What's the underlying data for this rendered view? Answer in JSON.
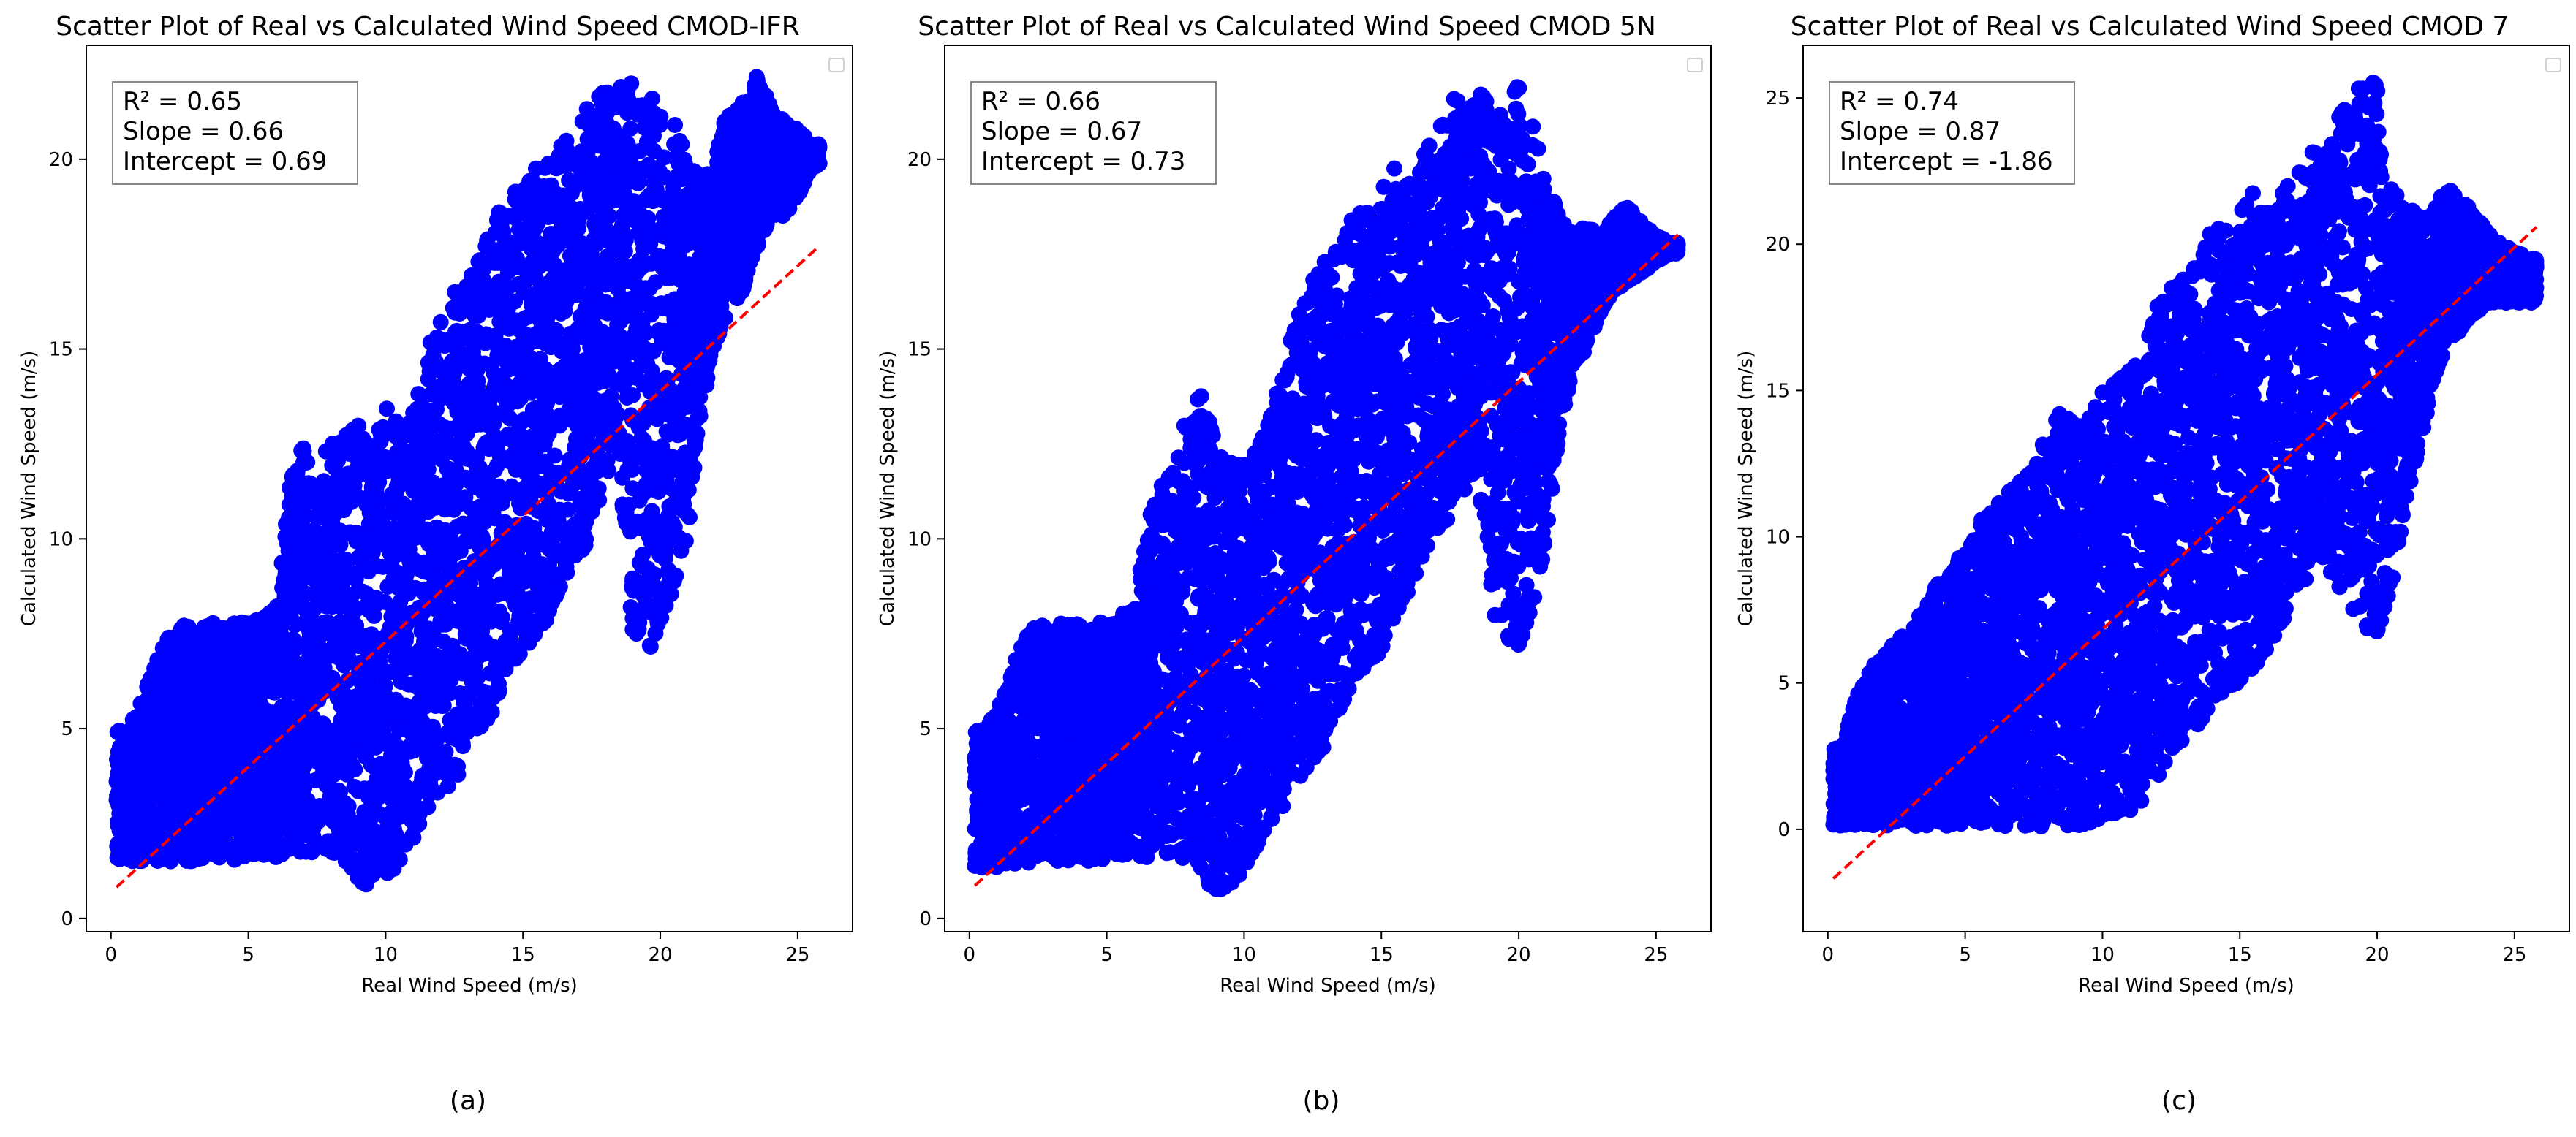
{
  "chart_data": [
    {
      "type": "scatter",
      "panel_label": "(a)",
      "title": "Scatter Plot of Real vs Calculated Wind Speed CMOD-IFR",
      "xlabel": "Real Wind Speed (m/s)",
      "ylabel": "Calculated Wind Speed (m/s)",
      "xlim": [
        -0.9,
        27.0
      ],
      "ylim": [
        -0.35,
        23.0
      ],
      "xticks": [
        0,
        5,
        10,
        15,
        20,
        25
      ],
      "yticks": [
        0,
        5,
        10,
        15,
        20
      ],
      "grid": false,
      "legend": "top-right (empty)",
      "stats": [
        "R² = 0.65",
        "Slope = 0.66",
        "Intercept = 0.69"
      ],
      "regression": {
        "slope": 0.66,
        "intercept": 0.69,
        "x_range": [
          0.2,
          25.8
        ],
        "style": "dashed",
        "color": "#ff0000"
      },
      "point_color": "#0000ff",
      "series": [
        {
          "x": [
            0.5,
            1.0,
            1.5,
            2.0,
            2.5,
            3.0,
            3.5,
            4.0,
            4.5,
            5.0,
            5.5,
            6.0,
            6.5,
            7.0,
            7.5,
            8.0,
            8.5,
            9.0,
            9.5,
            10.0,
            10.5,
            11.0,
            11.5,
            12.0,
            12.5,
            13.0,
            13.5,
            14.0,
            14.5,
            15.0,
            15.5,
            16.0,
            16.5,
            17.0,
            17.5,
            18.0,
            18.5,
            19.0,
            19.5,
            20.0,
            20.5,
            21.0,
            21.5,
            22.0,
            22.5,
            23.0,
            23.5,
            24.0,
            24.5,
            25.0,
            25.5
          ],
          "y_lower": [
            1.5,
            1.5,
            1.5,
            1.5,
            1.5,
            1.5,
            1.5,
            1.5,
            1.5,
            1.6,
            1.6,
            1.6,
            1.7,
            1.7,
            1.7,
            1.7,
            1.5,
            1.0,
            0.8,
            0.9,
            1.5,
            2.0,
            2.5,
            3.0,
            3.5,
            4.5,
            5.0,
            5.5,
            6.5,
            7.0,
            7.5,
            8.0,
            9.0,
            9.5,
            10.0,
            11.5,
            12.0,
            7.5,
            7.0,
            7.5,
            8.5,
            10.0,
            13.5,
            15.0,
            16.0,
            16.5,
            17.5,
            18.5,
            18.5,
            19.0,
            19.8
          ],
          "y_upper": [
            5.0,
            5.5,
            6.5,
            7.5,
            7.8,
            7.8,
            7.8,
            7.8,
            7.8,
            7.8,
            8.0,
            8.2,
            11.5,
            12.5,
            11.0,
            13.0,
            13.0,
            13.0,
            12.5,
            14.0,
            12.8,
            13.5,
            15.0,
            15.8,
            16.5,
            16.8,
            17.5,
            18.5,
            19.0,
            19.5,
            19.8,
            20.0,
            20.5,
            21.0,
            21.5,
            22.0,
            22.0,
            22.0,
            21.8,
            21.5,
            21.0,
            20.0,
            19.5,
            20.0,
            21.5,
            21.5,
            22.2,
            21.5,
            21.0,
            20.8,
            20.4
          ]
        }
      ]
    },
    {
      "type": "scatter",
      "panel_label": "(b)",
      "title": "Scatter Plot of Real vs Calculated Wind Speed CMOD 5N",
      "xlabel": "Real Wind Speed (m/s)",
      "ylabel": "Calculated Wind Speed (m/s)",
      "xlim": [
        -0.9,
        27.0
      ],
      "ylim": [
        -0.35,
        23.0
      ],
      "xticks": [
        0,
        5,
        10,
        15,
        20,
        25
      ],
      "yticks": [
        0,
        5,
        10,
        15,
        20
      ],
      "grid": false,
      "legend": "top-right (empty)",
      "stats": [
        "R² = 0.66",
        "Slope = 0.67",
        "Intercept = 0.73"
      ],
      "regression": {
        "slope": 0.67,
        "intercept": 0.73,
        "x_range": [
          0.2,
          25.8
        ],
        "style": "dashed",
        "color": "#ff0000"
      },
      "point_color": "#0000ff",
      "series": [
        {
          "x": [
            0.5,
            1.0,
            1.5,
            2.0,
            2.5,
            3.0,
            3.5,
            4.0,
            4.5,
            5.0,
            5.5,
            6.0,
            6.5,
            7.0,
            7.5,
            8.0,
            8.5,
            9.0,
            9.5,
            10.0,
            10.5,
            11.0,
            11.5,
            12.0,
            12.5,
            13.0,
            13.5,
            14.0,
            14.5,
            15.0,
            15.5,
            16.0,
            16.5,
            17.0,
            17.5,
            18.0,
            18.5,
            19.0,
            19.5,
            20.0,
            20.5,
            21.0,
            21.5,
            22.0,
            22.5,
            23.0,
            23.5,
            24.0,
            24.5,
            25.0,
            25.5
          ],
          "y_lower": [
            1.3,
            1.3,
            1.4,
            1.4,
            1.5,
            1.5,
            1.5,
            1.5,
            1.5,
            1.5,
            1.6,
            1.6,
            1.6,
            1.7,
            1.7,
            1.5,
            1.0,
            0.7,
            0.9,
            1.2,
            1.8,
            2.5,
            3.0,
            3.5,
            4.0,
            4.5,
            5.5,
            6.0,
            6.5,
            7.0,
            8.0,
            8.5,
            9.5,
            10.0,
            10.5,
            11.0,
            12.0,
            8.0,
            7.5,
            7.0,
            8.0,
            10.0,
            13.0,
            14.5,
            15.0,
            16.0,
            16.5,
            16.8,
            17.0,
            17.3,
            17.5
          ],
          "y_upper": [
            5.0,
            5.5,
            6.5,
            7.5,
            7.8,
            7.8,
            7.8,
            7.8,
            7.8,
            7.8,
            8.0,
            8.2,
            10.5,
            11.5,
            12.0,
            13.5,
            13.8,
            12.5,
            12.0,
            12.0,
            12.5,
            13.5,
            15.0,
            16.0,
            16.8,
            17.5,
            18.0,
            18.5,
            19.0,
            19.5,
            19.8,
            20.0,
            20.3,
            20.8,
            21.5,
            21.8,
            22.0,
            21.5,
            21.0,
            22.3,
            21.0,
            19.5,
            18.5,
            18.0,
            18.3,
            18.0,
            18.5,
            18.8,
            18.3,
            18.0,
            17.8
          ]
        }
      ]
    },
    {
      "type": "scatter",
      "panel_label": "(c)",
      "title": "Scatter Plot of Real vs Calculated Wind Speed CMOD 7",
      "xlabel": "Real Wind Speed (m/s)",
      "ylabel": "Calculated Wind Speed (m/s)",
      "xlim": [
        -0.9,
        27.0
      ],
      "ylim": [
        -3.5,
        26.8
      ],
      "xticks": [
        0,
        5,
        10,
        15,
        20,
        25
      ],
      "yticks": [
        0,
        5,
        10,
        15,
        20,
        25
      ],
      "grid": false,
      "legend": "top-right (empty)",
      "stats": [
        "R² = 0.74",
        "Slope = 0.87",
        "Intercept = -1.86"
      ],
      "regression": {
        "slope": 0.87,
        "intercept": -1.86,
        "x_range": [
          0.2,
          25.8
        ],
        "style": "dashed",
        "color": "#ff0000"
      },
      "point_color": "#0000ff",
      "series": [
        {
          "x": [
            0.5,
            1.0,
            1.5,
            2.0,
            2.5,
            3.0,
            3.5,
            4.0,
            4.5,
            5.0,
            5.5,
            6.0,
            6.5,
            7.0,
            7.5,
            8.0,
            8.5,
            9.0,
            9.5,
            10.0,
            10.5,
            11.0,
            11.5,
            12.0,
            12.5,
            13.0,
            13.5,
            14.0,
            14.5,
            15.0,
            15.5,
            16.0,
            16.5,
            17.0,
            17.5,
            18.0,
            18.5,
            19.0,
            19.5,
            20.0,
            20.5,
            21.0,
            21.5,
            22.0,
            22.5,
            23.0,
            23.5,
            24.0,
            24.5,
            25.0,
            25.5
          ],
          "y_lower": [
            0.1,
            0.1,
            0.1,
            0.1,
            0.1,
            0.1,
            0.1,
            0.1,
            0.1,
            0.1,
            0.1,
            0.1,
            0.1,
            0.1,
            0.1,
            0.1,
            0.1,
            0.1,
            0.2,
            0.3,
            0.3,
            0.5,
            1.0,
            1.5,
            2.5,
            3.0,
            3.5,
            4.0,
            4.5,
            5.0,
            5.5,
            6.0,
            7.0,
            8.0,
            8.5,
            9.0,
            8.5,
            7.5,
            7.0,
            6.5,
            8.0,
            11.0,
            13.0,
            15.0,
            16.5,
            17.0,
            17.5,
            18.0,
            18.0,
            18.0,
            18.0
          ],
          "y_upper": [
            2.8,
            4.5,
            5.5,
            6.0,
            6.5,
            7.0,
            7.5,
            8.5,
            9.0,
            9.5,
            10.5,
            11.0,
            11.5,
            12.0,
            12.5,
            13.5,
            14.3,
            14.0,
            14.0,
            15.0,
            15.5,
            16.0,
            16.5,
            18.0,
            18.5,
            19.0,
            19.8,
            20.5,
            21.0,
            21.5,
            21.8,
            22.0,
            22.0,
            22.5,
            23.0,
            23.5,
            24.5,
            25.0,
            25.5,
            25.8,
            22.0,
            21.5,
            21.0,
            21.0,
            22.0,
            21.8,
            21.0,
            20.5,
            20.0,
            19.8,
            19.5
          ]
        }
      ]
    }
  ]
}
